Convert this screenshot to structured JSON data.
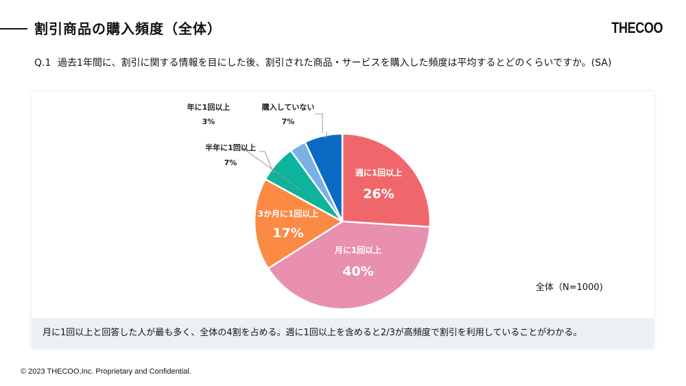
{
  "header": {
    "title": "割引商品の購入頻度（全体）",
    "logo": "THECOO"
  },
  "question": {
    "number": "Q.1",
    "text": "過去1年間に、割引に関する情報を目にした後、割引された商品・サービスを購入した頻度は平均するとどのくらいですか。(SA)"
  },
  "chart_data": {
    "type": "pie",
    "title": "割引商品の購入頻度（全体）",
    "sample_label": "全体（N=1000)",
    "start_angle": "12 o'clock, clockwise",
    "slices": [
      {
        "label": "週に1回以上",
        "value": 26,
        "display": "26%",
        "color": "#f0676b"
      },
      {
        "label": "月に1回以上",
        "value": 40,
        "display": "40%",
        "color": "#e98faf"
      },
      {
        "label": "3か月に1回以上",
        "value": 17,
        "display": "17%",
        "color": "#fb8a44"
      },
      {
        "label": "半年に1回以上",
        "value": 7,
        "display": "7%",
        "color": "#0db39a"
      },
      {
        "label": "年に1回以上",
        "value": 3,
        "display": "3%",
        "color": "#79b0e6"
      },
      {
        "label": "購入していない",
        "value": 7,
        "display": "7%",
        "color": "#0a6ac4"
      }
    ]
  },
  "summary": "月に1回以上と回答した人が最も多く、全体の4割を占める。週に1回以上を含めると2/3が高頻度で割引を利用していることがわかる。",
  "footer": "© 2023 THECOO,Inc. Proprietary and Confidential."
}
